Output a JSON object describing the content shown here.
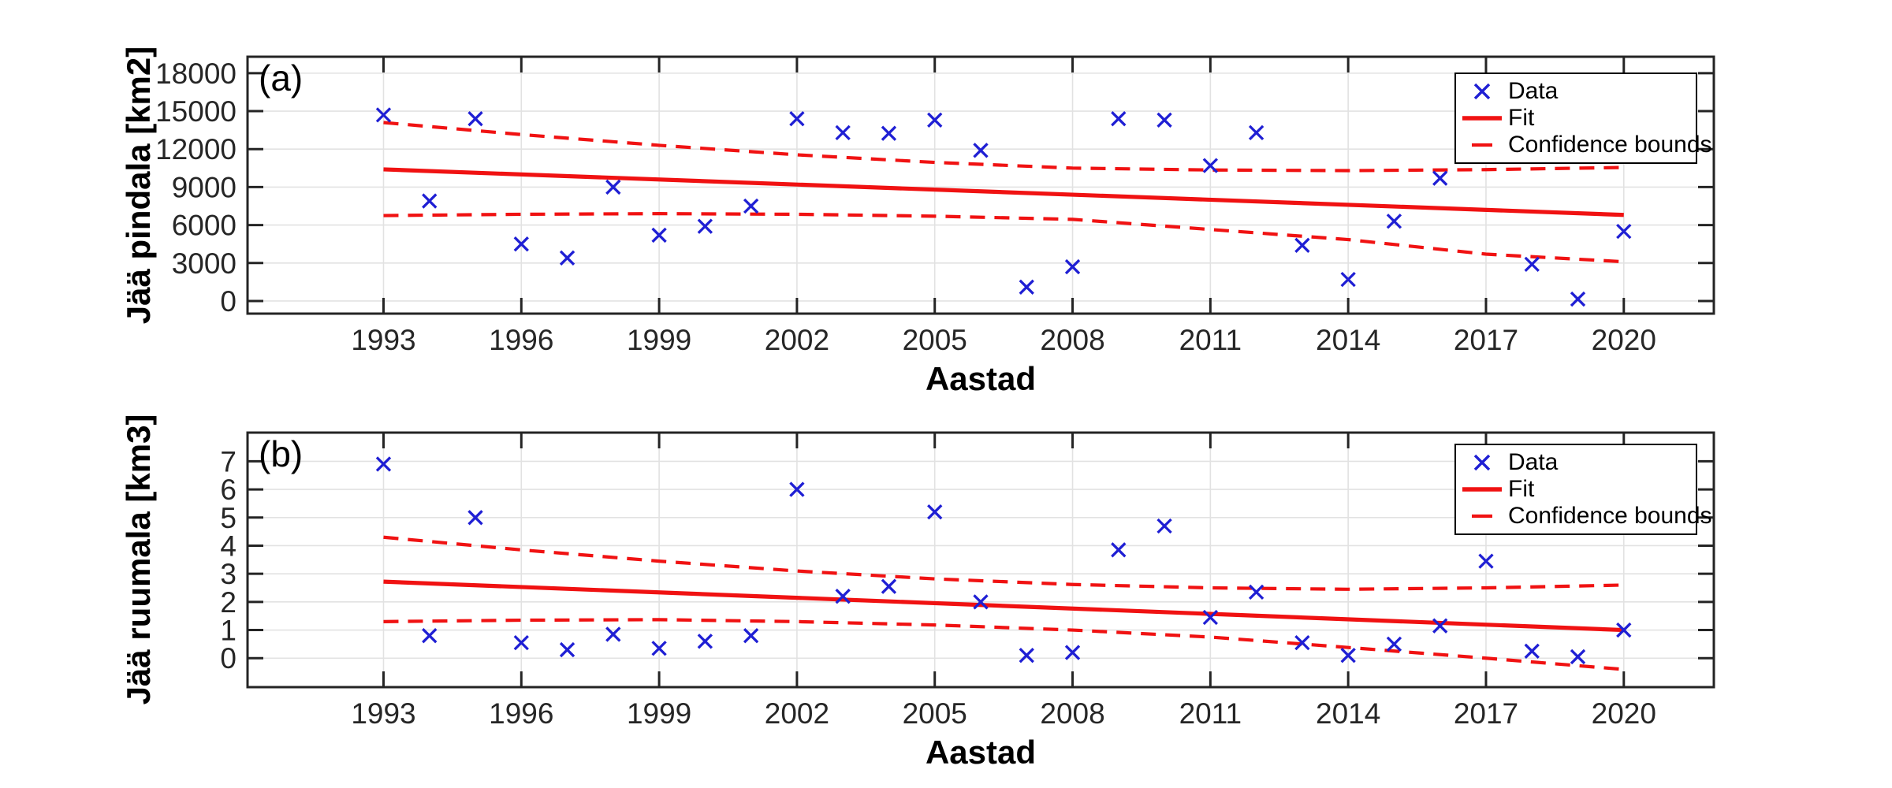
{
  "figure": {
    "background": "#ffffff",
    "panel_count": 2
  },
  "colors": {
    "data_marker": "#1f1fd4",
    "fit_line": "#f01212",
    "confidence_bounds": "#f01212",
    "axis": "#242424",
    "grid": "#e2e2e2",
    "tick_label": "#262626"
  },
  "chart_data": [
    {
      "type": "scatter",
      "panel_label": "(a)",
      "title": "",
      "xlabel": "Aastad",
      "ylabel": "Jää pindala [km2]",
      "xlim": [
        1990.04,
        2021.96
      ],
      "ylim": [
        -1000,
        19300
      ],
      "xticks": [
        1993,
        1996,
        1999,
        2002,
        2005,
        2008,
        2011,
        2014,
        2017,
        2020
      ],
      "yticks": [
        0,
        3000,
        6000,
        9000,
        12000,
        15000,
        18000
      ],
      "grid": true,
      "legend_position": "top-right",
      "legend": [
        {
          "label": "Data",
          "icon": "x-marker-icon",
          "color": "#1f1fd4"
        },
        {
          "label": "Fit",
          "icon": "solid-line-icon",
          "color": "#f01212"
        },
        {
          "label": "Confidence bounds",
          "icon": "dashed-line-icon",
          "color": "#f01212"
        }
      ],
      "series": [
        {
          "name": "Data",
          "kind": "scatter",
          "marker": "x",
          "color": "#1f1fd4",
          "x": [
            1993,
            1994,
            1995,
            1996,
            1997,
            1998,
            1999,
            2000,
            2001,
            2002,
            2003,
            2004,
            2005,
            2006,
            2007,
            2008,
            2009,
            2010,
            2011,
            2012,
            2013,
            2014,
            2015,
            2016,
            2018,
            2019,
            2020
          ],
          "y": [
            14700,
            7900,
            14400,
            4500,
            3400,
            9000,
            5200,
            5900,
            7500,
            14400,
            13300,
            13250,
            14300,
            11900,
            1100,
            2700,
            14400,
            14300,
            10700,
            13300,
            4400,
            1700,
            6300,
            9700,
            2900,
            150,
            5500
          ]
        },
        {
          "name": "Fit",
          "kind": "line",
          "style": "solid",
          "color": "#f01212",
          "x": [
            1993,
            2020
          ],
          "y": [
            10400,
            6800
          ]
        },
        {
          "name": "Confidence bound upper",
          "kind": "line",
          "style": "dashed",
          "color": "#f01212",
          "x": [
            1993,
            1996,
            1999,
            2002,
            2005,
            2008,
            2011,
            2014,
            2017,
            2020
          ],
          "y": [
            14100,
            13150,
            12300,
            11550,
            10950,
            10500,
            10350,
            10300,
            10380,
            10550
          ]
        },
        {
          "name": "Confidence bound lower",
          "kind": "line",
          "style": "dashed",
          "color": "#f01212",
          "x": [
            1993,
            1996,
            1999,
            2002,
            2005,
            2008,
            2011,
            2014,
            2017,
            2020
          ],
          "y": [
            6750,
            6850,
            6900,
            6850,
            6700,
            6450,
            5650,
            4850,
            3700,
            3100
          ]
        }
      ]
    },
    {
      "type": "scatter",
      "panel_label": "(b)",
      "title": "",
      "xlabel": "Aastad",
      "ylabel": "Jää ruumala [km3]",
      "xlim": [
        1990.04,
        2021.96
      ],
      "ylim": [
        -1.03,
        8.02
      ],
      "xticks": [
        1993,
        1996,
        1999,
        2002,
        2005,
        2008,
        2011,
        2014,
        2017,
        2020
      ],
      "yticks": [
        0,
        1,
        2,
        3,
        4,
        5,
        6,
        7
      ],
      "grid": true,
      "legend_position": "top-right",
      "legend": [
        {
          "label": "Data",
          "icon": "x-marker-icon",
          "color": "#1f1fd4"
        },
        {
          "label": "Fit",
          "icon": "solid-line-icon",
          "color": "#f01212"
        },
        {
          "label": "Confidence bounds",
          "icon": "dashed-line-icon",
          "color": "#f01212"
        }
      ],
      "series": [
        {
          "name": "Data",
          "kind": "scatter",
          "marker": "x",
          "color": "#1f1fd4",
          "x": [
            1993,
            1994,
            1995,
            1996,
            1997,
            1998,
            1999,
            2000,
            2001,
            2002,
            2003,
            2004,
            2005,
            2006,
            2007,
            2008,
            2009,
            2010,
            2011,
            2012,
            2013,
            2014,
            2015,
            2016,
            2017,
            2018,
            2019,
            2020
          ],
          "y": [
            6.9,
            0.8,
            5.0,
            0.55,
            0.3,
            0.85,
            0.35,
            0.6,
            0.8,
            6.0,
            2.2,
            2.55,
            5.2,
            2.0,
            0.1,
            0.2,
            3.85,
            4.7,
            1.45,
            2.35,
            0.55,
            0.1,
            0.5,
            1.15,
            3.45,
            0.25,
            0.05,
            1.0
          ]
        },
        {
          "name": "Fit",
          "kind": "line",
          "style": "solid",
          "color": "#f01212",
          "x": [
            1993,
            2020
          ],
          "y": [
            2.72,
            1.0
          ]
        },
        {
          "name": "Confidence bound upper",
          "kind": "line",
          "style": "dashed",
          "color": "#f01212",
          "x": [
            1993,
            1996,
            1999,
            2002,
            2005,
            2008,
            2011,
            2014,
            2017,
            2020
          ],
          "y": [
            4.3,
            3.85,
            3.45,
            3.1,
            2.82,
            2.62,
            2.5,
            2.45,
            2.5,
            2.6
          ]
        },
        {
          "name": "Confidence bound lower",
          "kind": "line",
          "style": "dashed",
          "color": "#f01212",
          "x": [
            1993,
            1996,
            1999,
            2002,
            2005,
            2008,
            2011,
            2014,
            2017,
            2020
          ],
          "y": [
            1.3,
            1.35,
            1.37,
            1.3,
            1.18,
            1.0,
            0.75,
            0.38,
            0.0,
            -0.4
          ]
        }
      ]
    }
  ]
}
